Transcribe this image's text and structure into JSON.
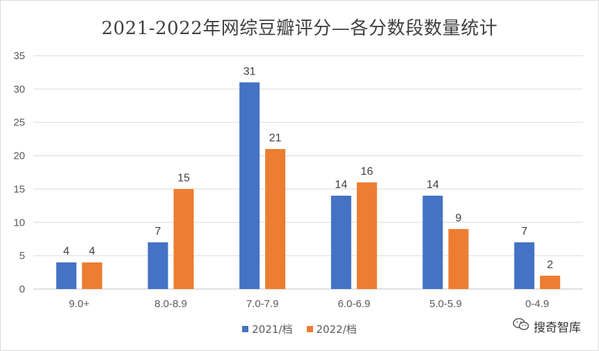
{
  "chart_data": {
    "type": "bar",
    "title": "2021-2022年网综豆瓣评分—各分数段数量统计",
    "categories": [
      "9.0+",
      "8.0-8.9",
      "7.0-7.9",
      "6.0-6.9",
      "5.0-5.9",
      "0-4.9"
    ],
    "series": [
      {
        "name": "2021/档",
        "values": [
          4,
          7,
          31,
          14,
          14,
          7
        ],
        "color": "#4472C4"
      },
      {
        "name": "2022/档",
        "values": [
          4,
          15,
          21,
          16,
          9,
          2
        ],
        "color": "#ED7D31"
      }
    ],
    "ylim": [
      0,
      35
    ],
    "yticks": [
      0,
      5,
      10,
      15,
      20,
      25,
      30,
      35
    ],
    "grid": true,
    "legend": "bottom",
    "xlabel": "",
    "ylabel": ""
  },
  "watermark": {
    "text": "搜奇智库",
    "icon": "wechat-icon"
  }
}
